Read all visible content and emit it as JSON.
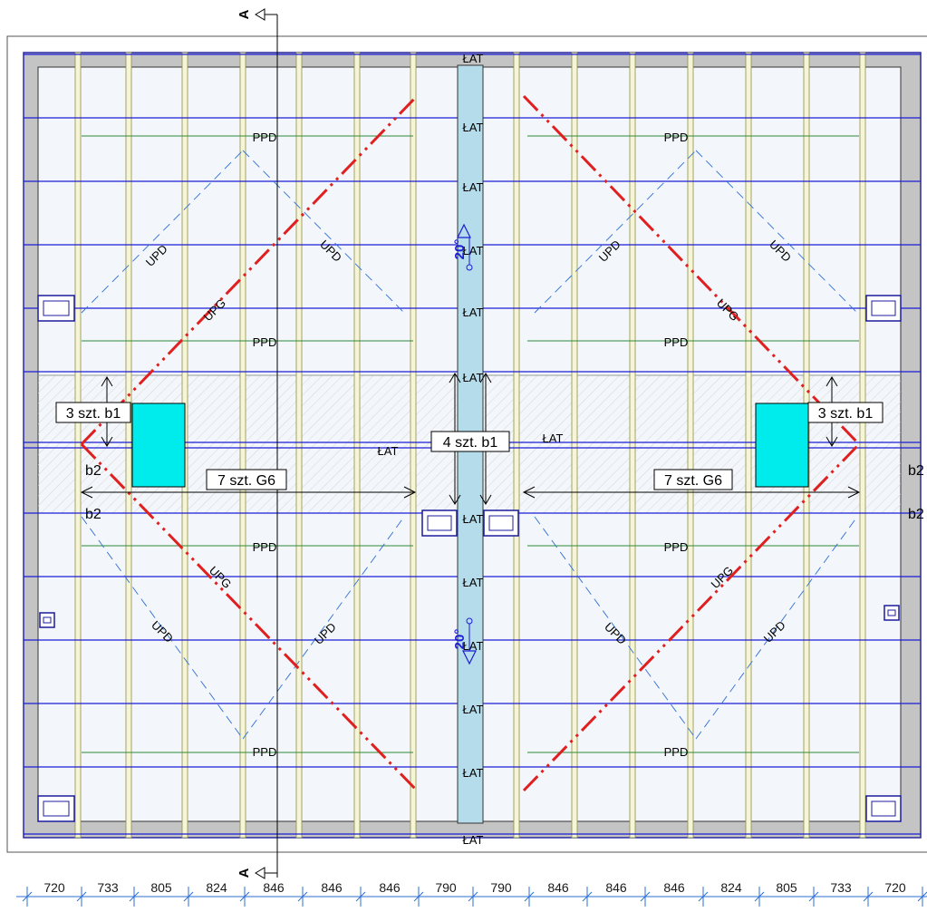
{
  "section_marker": "A",
  "ridge_label": "ŁAT",
  "batten_labels": [
    "ŁAT",
    "ŁAT",
    "ŁAT",
    "ŁAT",
    "ŁAT",
    "ŁAT",
    "ŁAT",
    "ŁAT",
    "ŁAT",
    "ŁAT",
    "ŁAT",
    "ŁAT",
    "ŁAT"
  ],
  "ppd_label": "PPD",
  "upd_label": "UPD",
  "upg_label": "UPG",
  "slope_label": "20°",
  "callouts": {
    "left_b1": "3 szt. b1",
    "right_b1": "3 szt. b1",
    "center_b1": "4 szt. b1",
    "left_g6": "7 szt. G6",
    "right_g6": "7 szt. G6",
    "b2": "b2"
  },
  "dimensions": [
    "720",
    "733",
    "805",
    "824",
    "846",
    "846",
    "846",
    "790",
    "790",
    "846",
    "846",
    "846",
    "824",
    "805",
    "733",
    "720"
  ],
  "colors": {
    "batten_blue": "#1c1cd6",
    "rafter_fill": "#f6f6d6",
    "rafter_stroke": "#8c8c4a",
    "ridge_fill": "#b4dcea",
    "hip_red": "#e02020",
    "dim_blue": "#2e6fd6",
    "wall_grey": "#c4c4c4",
    "skylight_cyan": "#00ebeb"
  }
}
